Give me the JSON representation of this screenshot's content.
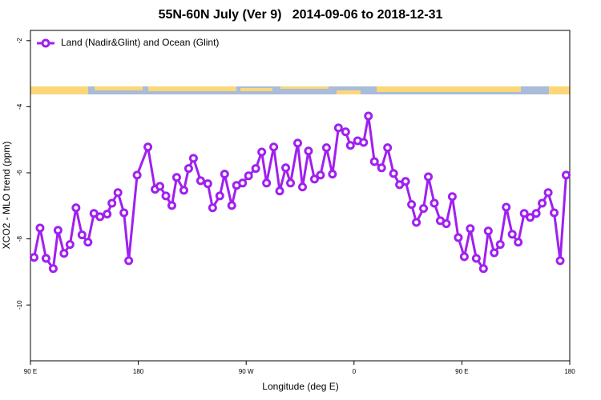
{
  "chart_data": {
    "type": "line",
    "title": "55N-60N July (Ver 9)   2014-09-06 to 2018-12-31",
    "x_label": "Longitude (deg E)",
    "y_label": "XCO2 - MLO trend (ppm)",
    "xlim": [
      90,
      540
    ],
    "ylim": [
      -11.69,
      -1.69
    ],
    "xticks": [
      {
        "value": 90,
        "label": "90 E"
      },
      180,
      {
        "value": 270,
        "label": "90 W"
      },
      {
        "value": 360,
        "label": "0"
      },
      {
        "value": 450,
        "label": "90 E"
      },
      {
        "value": 540,
        "label": "180"
      }
    ],
    "yticks": [
      -2,
      -4,
      -6,
      -8,
      -10
    ],
    "legend": "top-left",
    "x": [
      93,
      98,
      103,
      109,
      113,
      118,
      123,
      128,
      133,
      138,
      143,
      148,
      154,
      158,
      163,
      168,
      172,
      179,
      188,
      194,
      198,
      203,
      208,
      212,
      218,
      222,
      226,
      232,
      238,
      242,
      248,
      252,
      258,
      262,
      267,
      272,
      278,
      283,
      287,
      293,
      298,
      303,
      307,
      313,
      317,
      322,
      327,
      332,
      337,
      342,
      347,
      353,
      357,
      363,
      368,
      372,
      377,
      383,
      388,
      393,
      398,
      403,
      408,
      412,
      418,
      422,
      427,
      432,
      437,
      442,
      447,
      452,
      457,
      462,
      468,
      472,
      477,
      482,
      487,
      492,
      497,
      502,
      507,
      512,
      517,
      522,
      527,
      532,
      537
    ],
    "series": [
      {
        "name": "Land (Nadir&Glint) and Ocean (Glint)",
        "color": "#a020f0",
        "values": [
          -8.56,
          -7.67,
          -8.59,
          -8.9,
          -7.74,
          -8.44,
          -8.17,
          -7.06,
          -7.88,
          -8.1,
          -7.23,
          -7.33,
          -7.25,
          -6.92,
          -6.6,
          -7.21,
          -8.66,
          -6.07,
          -5.22,
          -6.5,
          -6.41,
          -6.7,
          -6.99,
          -6.14,
          -6.53,
          -5.87,
          -5.56,
          -6.24,
          -6.33,
          -7.06,
          -6.7,
          -6.04,
          -6.99,
          -6.38,
          -6.31,
          -6.09,
          -5.87,
          -5.37,
          -6.31,
          -5.22,
          -6.55,
          -5.85,
          -6.31,
          -5.1,
          -6.43,
          -5.34,
          -6.19,
          -6.07,
          -5.24,
          -6.04,
          -4.64,
          -4.76,
          -5.17,
          -5.03,
          -5.08,
          -4.28,
          -5.66,
          -5.85,
          -5.24,
          -6.02,
          -6.36,
          -6.26,
          -6.96,
          -7.5,
          -7.08,
          -6.12,
          -6.92,
          -7.45,
          -7.54,
          -6.72,
          -7.96,
          -8.54,
          -7.69,
          -8.59,
          -8.9,
          -7.76,
          -8.42,
          -8.17,
          -7.04,
          -7.86,
          -8.1,
          -7.23,
          -7.35,
          -7.23,
          -6.92,
          -6.6,
          -7.21,
          -8.66,
          -6.07
        ]
      }
    ]
  }
}
